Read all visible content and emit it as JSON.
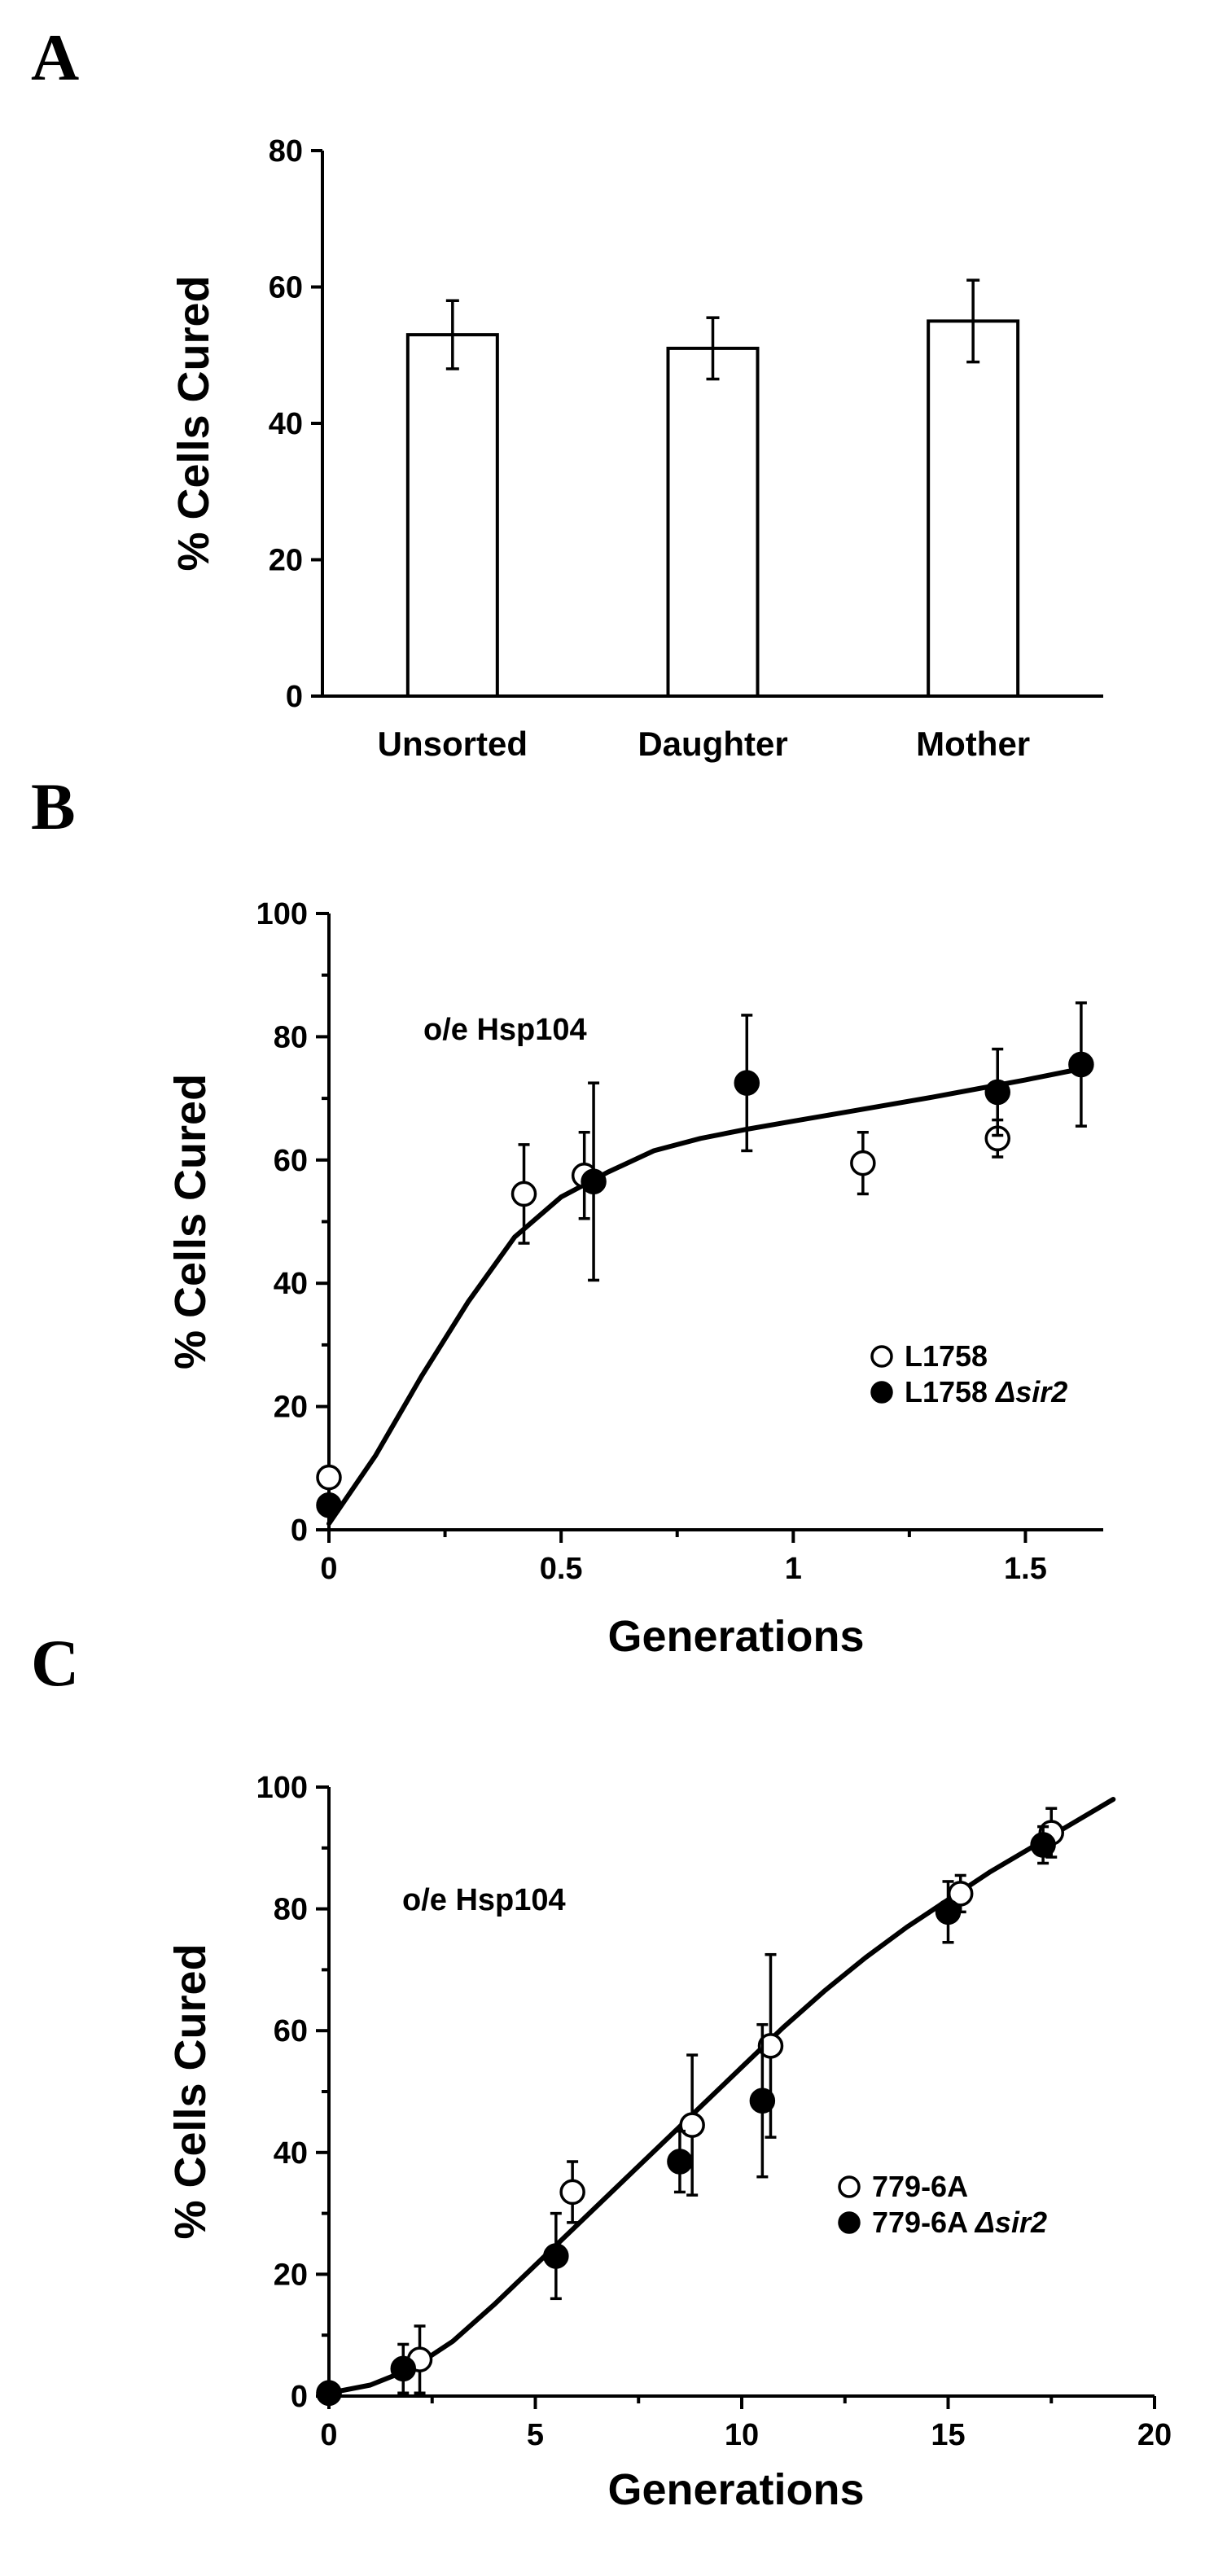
{
  "chart_data": [
    {
      "panel": "A",
      "type": "bar",
      "title": "",
      "ylabel": "% Cells Cured",
      "xlabel": "",
      "ylim": [
        0,
        80
      ],
      "yticks": [
        0,
        20,
        40,
        60,
        80
      ],
      "categories": [
        "Unsorted",
        "Daughter",
        "Mother"
      ],
      "values": [
        53,
        51,
        55
      ],
      "errors": [
        5,
        4.5,
        6
      ]
    },
    {
      "panel": "B",
      "type": "scatter",
      "annotation": "o/e Hsp104",
      "xlabel": "Generations",
      "ylabel": "% Cells Cured",
      "xlim": [
        0,
        1.65
      ],
      "ylim": [
        0,
        100
      ],
      "xticks": [
        0,
        0.5,
        1,
        1.5
      ],
      "xtick_labels": [
        "0",
        "0.5",
        "1",
        "1.5"
      ],
      "yticks": [
        0,
        20,
        40,
        60,
        80,
        100
      ],
      "legend_position": "center-right",
      "series": [
        {
          "name": "L1758",
          "name_base": "L1758",
          "name_italic": "",
          "marker": "open",
          "points": [
            {
              "x": 0,
              "y": 8.5,
              "err": 0
            },
            {
              "x": 0.42,
              "y": 54.5,
              "err": 8
            },
            {
              "x": 0.55,
              "y": 57.5,
              "err": 7
            },
            {
              "x": 1.15,
              "y": 59.5,
              "err": 5
            },
            {
              "x": 1.44,
              "y": 63.5,
              "err": 3
            }
          ]
        },
        {
          "name": "L1758 Δsir2",
          "name_base": "L1758 ",
          "name_italic": "Δsir2",
          "marker": "filled",
          "points": [
            {
              "x": 0,
              "y": 4,
              "err": 0
            },
            {
              "x": 0.57,
              "y": 56.5,
              "err": 16
            },
            {
              "x": 0.9,
              "y": 72.5,
              "err": 11
            },
            {
              "x": 1.44,
              "y": 71,
              "err": 7
            },
            {
              "x": 1.62,
              "y": 75.5,
              "err": 10
            }
          ]
        }
      ],
      "fit": [
        [
          0,
          1
        ],
        [
          0.1,
          12
        ],
        [
          0.2,
          25
        ],
        [
          0.3,
          37
        ],
        [
          0.4,
          47.5
        ],
        [
          0.5,
          54
        ],
        [
          0.55,
          56
        ],
        [
          0.6,
          58
        ],
        [
          0.7,
          61.5
        ],
        [
          0.8,
          63.5
        ],
        [
          0.9,
          65
        ],
        [
          1.0,
          66.3
        ],
        [
          1.1,
          67.6
        ],
        [
          1.2,
          68.9
        ],
        [
          1.3,
          70.2
        ],
        [
          1.4,
          71.6
        ],
        [
          1.5,
          73
        ],
        [
          1.6,
          74.5
        ],
        [
          1.62,
          74.8
        ]
      ]
    },
    {
      "panel": "C",
      "type": "scatter",
      "annotation": "o/e Hsp104",
      "xlabel": "Generations",
      "ylabel": "% Cells Cured",
      "xlim": [
        0,
        20
      ],
      "ylim": [
        0,
        100
      ],
      "xticks": [
        0,
        5,
        10,
        15,
        20
      ],
      "xtick_labels": [
        "0",
        "5",
        "10",
        "15",
        "20"
      ],
      "yticks": [
        0,
        20,
        40,
        60,
        80,
        100
      ],
      "legend_position": "center-right",
      "series": [
        {
          "name": "779-6A",
          "name_base": "779-6A",
          "name_italic": "",
          "marker": "open",
          "points": [
            {
              "x": 0,
              "y": 0.5,
              "err": 0
            },
            {
              "x": 2.2,
              "y": 6,
              "err": 5.5
            },
            {
              "x": 5.9,
              "y": 33.5,
              "err": 5
            },
            {
              "x": 8.8,
              "y": 44.5,
              "err": 11.5
            },
            {
              "x": 10.7,
              "y": 57.5,
              "err": 15
            },
            {
              "x": 15.3,
              "y": 82.5,
              "err": 3
            },
            {
              "x": 17.5,
              "y": 92.5,
              "err": 4
            }
          ]
        },
        {
          "name": "779-6A Δsir2",
          "name_base": "779-6A ",
          "name_italic": "Δsir2",
          "marker": "filled",
          "points": [
            {
              "x": 0,
              "y": 0.5,
              "err": 0
            },
            {
              "x": 1.8,
              "y": 4.5,
              "err": 4
            },
            {
              "x": 5.5,
              "y": 23,
              "err": 7
            },
            {
              "x": 8.5,
              "y": 38.5,
              "err": 5
            },
            {
              "x": 10.5,
              "y": 48.5,
              "err": 12.5
            },
            {
              "x": 15.0,
              "y": 79.5,
              "err": 5
            },
            {
              "x": 17.3,
              "y": 90.5,
              "err": 3
            }
          ]
        }
      ],
      "fit": [
        [
          0,
          0.5
        ],
        [
          1,
          1.8
        ],
        [
          2,
          4.5
        ],
        [
          3,
          9
        ],
        [
          4,
          15
        ],
        [
          5,
          21.5
        ],
        [
          6,
          28
        ],
        [
          7,
          34.5
        ],
        [
          8,
          41
        ],
        [
          9,
          47.5
        ],
        [
          10,
          54
        ],
        [
          11,
          60.5
        ],
        [
          12,
          66.5
        ],
        [
          13,
          72
        ],
        [
          14,
          77
        ],
        [
          15,
          81.5
        ],
        [
          16,
          86
        ],
        [
          17,
          90
        ],
        [
          18,
          94
        ],
        [
          19,
          98
        ]
      ]
    }
  ]
}
